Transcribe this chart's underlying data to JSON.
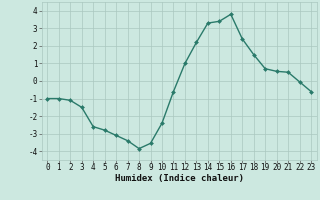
{
  "x": [
    0,
    1,
    2,
    3,
    4,
    5,
    6,
    7,
    8,
    9,
    10,
    11,
    12,
    13,
    14,
    15,
    16,
    17,
    18,
    19,
    20,
    21,
    22,
    23
  ],
  "y": [
    -1.0,
    -1.0,
    -1.1,
    -1.5,
    -2.6,
    -2.8,
    -3.1,
    -3.4,
    -3.85,
    -3.55,
    -2.4,
    -0.6,
    1.0,
    2.2,
    3.3,
    3.4,
    3.8,
    2.4,
    1.5,
    0.7,
    0.55,
    0.5,
    -0.05,
    -0.6
  ],
  "line_color": "#2a7a6a",
  "marker": "D",
  "marker_size": 2.0,
  "linewidth": 1.0,
  "bg_color": "#cce8e0",
  "grid_color": "#aac8c0",
  "xlabel": "Humidex (Indice chaleur)",
  "ylim": [
    -4.5,
    4.5
  ],
  "xlim": [
    -0.5,
    23.5
  ],
  "yticks": [
    -4,
    -3,
    -2,
    -1,
    0,
    1,
    2,
    3,
    4
  ],
  "xticks": [
    0,
    1,
    2,
    3,
    4,
    5,
    6,
    7,
    8,
    9,
    10,
    11,
    12,
    13,
    14,
    15,
    16,
    17,
    18,
    19,
    20,
    21,
    22,
    23
  ],
  "xlabel_fontsize": 6.5,
  "tick_fontsize": 5.5
}
